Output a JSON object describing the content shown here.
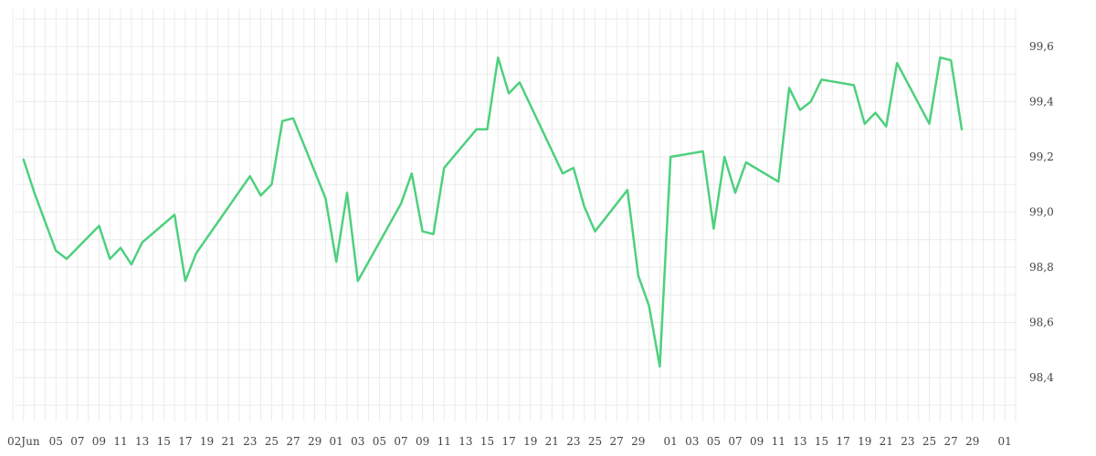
{
  "colors": {
    "line": "#4ed07e",
    "grid": "#ebebeb",
    "text": "#444444"
  },
  "chart_data": {
    "type": "line",
    "title": "",
    "xlabel": "",
    "ylabel": "",
    "ylim": [
      98.25,
      99.75
    ],
    "y_axis_position": "right",
    "grid": true,
    "legend": "none",
    "y_ticks": [
      "98,4",
      "98,6",
      "98,8",
      "99,0",
      "99,2",
      "99,4",
      "99,6"
    ],
    "x_ticks": [
      "02Jun",
      "05",
      "07",
      "09",
      "11",
      "13",
      "15",
      "17",
      "19",
      "21",
      "23",
      "25",
      "27",
      "29",
      "01",
      "03",
      "05",
      "07",
      "09",
      "11",
      "13",
      "15",
      "17",
      "19",
      "21",
      "23",
      "25",
      "27",
      "29",
      "01",
      "03",
      "05",
      "07",
      "09",
      "11",
      "13",
      "15",
      "17",
      "19",
      "21",
      "23",
      "25",
      "27",
      "29",
      "01"
    ],
    "series": [
      {
        "x": [
          "2021-06-02",
          "2021-06-03",
          "2021-06-05",
          "2021-06-06",
          "2021-06-09",
          "2021-06-10",
          "2021-06-11",
          "2021-06-12",
          "2021-06-13",
          "2021-06-16",
          "2021-06-17",
          "2021-06-18",
          "2021-06-23",
          "2021-06-24",
          "2021-06-25",
          "2021-06-26",
          "2021-06-27",
          "2021-06-30",
          "2021-07-01",
          "2021-07-02",
          "2021-07-03",
          "2021-07-07",
          "2021-07-08",
          "2021-07-09",
          "2021-07-10",
          "2021-07-11",
          "2021-07-14",
          "2021-07-15",
          "2021-07-16",
          "2021-07-17",
          "2021-07-18",
          "2021-07-22",
          "2021-07-23",
          "2021-07-24",
          "2021-07-25",
          "2021-07-28",
          "2021-07-29",
          "2021-07-30",
          "2021-07-31",
          "2021-08-01",
          "2021-08-04",
          "2021-08-05",
          "2021-08-06",
          "2021-08-07",
          "2021-08-08",
          "2021-08-11",
          "2021-08-12",
          "2021-08-13",
          "2021-08-14",
          "2021-08-15",
          "2021-08-18",
          "2021-08-19",
          "2021-08-20",
          "2021-08-21",
          "2021-08-22",
          "2021-08-25",
          "2021-08-26",
          "2021-08-27",
          "2021-08-28"
        ],
        "values": [
          99.19,
          99.07,
          98.86,
          98.83,
          98.95,
          98.83,
          98.87,
          98.81,
          98.89,
          98.99,
          98.75,
          98.85,
          99.13,
          99.06,
          99.1,
          99.33,
          99.34,
          99.05,
          98.82,
          99.07,
          98.75,
          99.03,
          99.14,
          98.93,
          98.92,
          99.16,
          99.3,
          99.3,
          99.56,
          99.43,
          99.47,
          99.14,
          99.16,
          99.02,
          98.93,
          99.08,
          98.77,
          98.66,
          98.44,
          99.2,
          99.22,
          98.94,
          99.2,
          99.07,
          99.18,
          99.11,
          99.45,
          99.37,
          99.4,
          99.48,
          99.46,
          99.32,
          99.36,
          99.31,
          99.54,
          99.32,
          99.56,
          99.55,
          99.3
        ]
      }
    ]
  }
}
